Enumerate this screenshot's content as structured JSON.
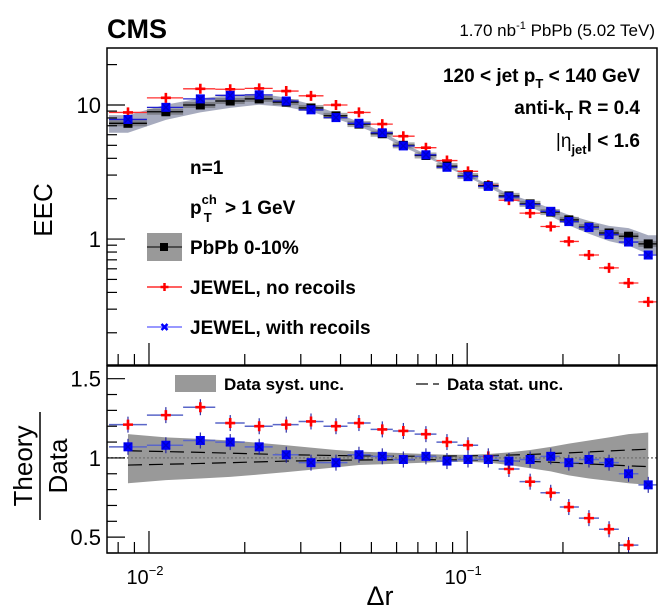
{
  "header": {
    "experiment": "CMS",
    "lumi_prefix": "1.70 nb",
    "lumi_exp": "-1",
    "lumi_suffix": " PbPb (5.02 TeV)"
  },
  "top_labels": {
    "line1_a": "120 < jet p",
    "line1_sub": "T",
    "line1_b": " < 140 GeV",
    "line2_a": "anti-k",
    "line2_sub": "T",
    "line2_b": " R = 0.4",
    "line3_a": "|η",
    "line3_sub": "jet",
    "line3_b": "| < 1.6",
    "n_label": "n=1",
    "pt_a": "p",
    "pt_sup": "ch",
    "pt_sub": "T",
    "pt_b": " > 1 GeV"
  },
  "legend_top": [
    {
      "label": "PbPb 0-10%",
      "series": "data"
    },
    {
      "label": "JEWEL, no recoils",
      "series": "jewel_norecoil"
    },
    {
      "label": "JEWEL, with recoils",
      "series": "jewel_recoil"
    }
  ],
  "legend_bottom": [
    {
      "label": "Data syst. unc."
    },
    {
      "label": "Data stat. unc."
    }
  ],
  "colors": {
    "data": "#000000",
    "jewel_norecoil": "#ff0000",
    "jewel_recoil": "#0000ff",
    "syst_band": "#999999",
    "band_top": "#8a8fa8"
  },
  "chart_data": [
    {
      "type": "scatter",
      "panel": "main",
      "title": "",
      "xlabel": "Δr",
      "ylabel": "EEC",
      "xscale": "log",
      "yscale": "log",
      "xlim": [
        0.00738,
        0.395
      ],
      "ylim": [
        0.115,
        26.6
      ],
      "yticks": [
        {
          "value": 1,
          "label": "1"
        },
        {
          "value": 10,
          "label": "10"
        }
      ],
      "x": [
        0.00859,
        0.0113,
        0.0145,
        0.018,
        0.0222,
        0.027,
        0.0323,
        0.0387,
        0.0457,
        0.0541,
        0.063,
        0.0742,
        0.0864,
        0.1006,
        0.1165,
        0.1353,
        0.1577,
        0.1831,
        0.2087,
        0.2414,
        0.2792,
        0.3215,
        0.3707
      ],
      "series": [
        {
          "name": "PbPb 0-10%",
          "key": "data",
          "values": [
            7.3,
            8.9,
            10.0,
            10.7,
            11.1,
            10.5,
            9.5,
            8.3,
            7.2,
            6.1,
            5.0,
            4.2,
            3.5,
            2.95,
            2.5,
            2.1,
            1.83,
            1.59,
            1.39,
            1.23,
            1.11,
            1.05,
            0.92
          ]
        },
        {
          "name": "JEWEL, no recoils",
          "key": "jewel_norecoil",
          "values": [
            8.8,
            11.3,
            13.2,
            13.1,
            13.3,
            12.7,
            11.7,
            10.0,
            8.8,
            7.2,
            5.85,
            4.8,
            3.85,
            3.2,
            2.52,
            1.95,
            1.56,
            1.24,
            0.96,
            0.76,
            0.61,
            0.47,
            0.34
          ]
        },
        {
          "name": "JEWEL, with recoils",
          "key": "jewel_recoil",
          "values": [
            7.8,
            9.6,
            11.1,
            11.8,
            11.9,
            10.7,
            9.2,
            8.05,
            7.3,
            6.2,
            4.95,
            4.25,
            3.43,
            2.92,
            2.47,
            2.06,
            1.81,
            1.61,
            1.35,
            1.22,
            1.08,
            0.95,
            0.76
          ]
        }
      ],
      "syst_rel": [
        0.15,
        0.13,
        0.12,
        0.11,
        0.095,
        0.08,
        0.065,
        0.05,
        0.04,
        0.035,
        0.03,
        0.025,
        0.02,
        0.02,
        0.025,
        0.035,
        0.05,
        0.07,
        0.09,
        0.11,
        0.13,
        0.15,
        0.16
      ]
    },
    {
      "type": "scatter",
      "panel": "ratio",
      "xlabel": "Δr",
      "ylabel": "Theory / Data",
      "ylabel_num": "Theory",
      "ylabel_den": "Data",
      "xscale": "log",
      "yscale": "linear",
      "xlim": [
        0.00738,
        0.395
      ],
      "ylim": [
        0.4,
        1.58
      ],
      "yticks": [
        {
          "value": 0.5,
          "label": "0.5"
        },
        {
          "value": 1,
          "label": "1"
        },
        {
          "value": 1.5,
          "label": "1.5"
        }
      ],
      "xticks": [
        {
          "value": 0.01,
          "label": "10",
          "exp": "−2"
        },
        {
          "value": 0.1,
          "label": "10",
          "exp": "−1"
        }
      ],
      "x": [
        0.00859,
        0.0113,
        0.0145,
        0.018,
        0.0222,
        0.027,
        0.0323,
        0.0387,
        0.0457,
        0.0541,
        0.063,
        0.0742,
        0.0864,
        0.1006,
        0.1165,
        0.1353,
        0.1577,
        0.1831,
        0.2087,
        0.2414,
        0.2792,
        0.3215,
        0.3707
      ],
      "series": [
        {
          "name": "JEWEL, no recoils",
          "key": "jewel_norecoil",
          "values": [
            1.21,
            1.27,
            1.32,
            1.22,
            1.2,
            1.21,
            1.23,
            1.2,
            1.22,
            1.18,
            1.17,
            1.15,
            1.1,
            1.08,
            1.01,
            0.93,
            0.85,
            0.78,
            0.69,
            0.62,
            0.55,
            0.45,
            0.37
          ]
        },
        {
          "name": "JEWEL, with recoils",
          "key": "jewel_recoil",
          "values": [
            1.07,
            1.08,
            1.11,
            1.1,
            1.07,
            1.02,
            0.97,
            0.97,
            1.02,
            1.01,
            0.99,
            1.01,
            0.98,
            0.99,
            0.99,
            0.98,
            0.99,
            1.01,
            0.97,
            0.99,
            0.97,
            0.9,
            0.83
          ]
        }
      ],
      "syst_up": [
        1.15,
        1.13,
        1.12,
        1.11,
        1.095,
        1.08,
        1.065,
        1.05,
        1.04,
        1.035,
        1.03,
        1.025,
        1.02,
        1.02,
        1.025,
        1.035,
        1.05,
        1.07,
        1.09,
        1.11,
        1.13,
        1.15,
        1.16
      ],
      "syst_down": [
        0.84,
        0.86,
        0.87,
        0.88,
        0.895,
        0.91,
        0.925,
        0.94,
        0.955,
        0.96,
        0.965,
        0.97,
        0.975,
        0.975,
        0.97,
        0.955,
        0.935,
        0.915,
        0.89,
        0.87,
        0.855,
        0.84,
        0.83
      ],
      "stat_rel": [
        0.045,
        0.04,
        0.035,
        0.03,
        0.025,
        0.02,
        0.018,
        0.015,
        0.013,
        0.012,
        0.011,
        0.011,
        0.012,
        0.013,
        0.015,
        0.018,
        0.022,
        0.027,
        0.032,
        0.038,
        0.044,
        0.05,
        0.055
      ],
      "reference_line": 1.0
    }
  ]
}
